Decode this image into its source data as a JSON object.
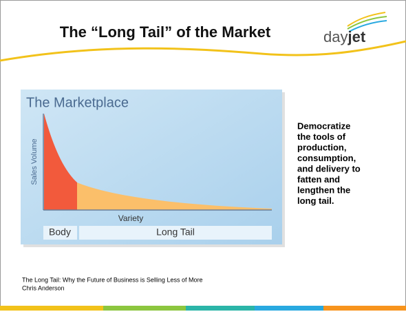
{
  "header": {
    "title": "The “Long Tail” of the Market",
    "logo": {
      "light": "day",
      "bold": "jet"
    }
  },
  "figure": {
    "title": "The Marketplace",
    "y_axis": "Sales Volume",
    "x_axis": "Variety",
    "segments": [
      "Body",
      "Long Tail"
    ]
  },
  "body": {
    "lines": [
      "Democratize",
      "the tools of",
      "production,",
      "consumption,",
      "and delivery to",
      "fatten and",
      "lengthen the",
      "long tail."
    ]
  },
  "citation": {
    "lines": [
      "The Long Tail: Why the Future of Business is Selling Less of More",
      "Chris Anderson"
    ]
  }
}
